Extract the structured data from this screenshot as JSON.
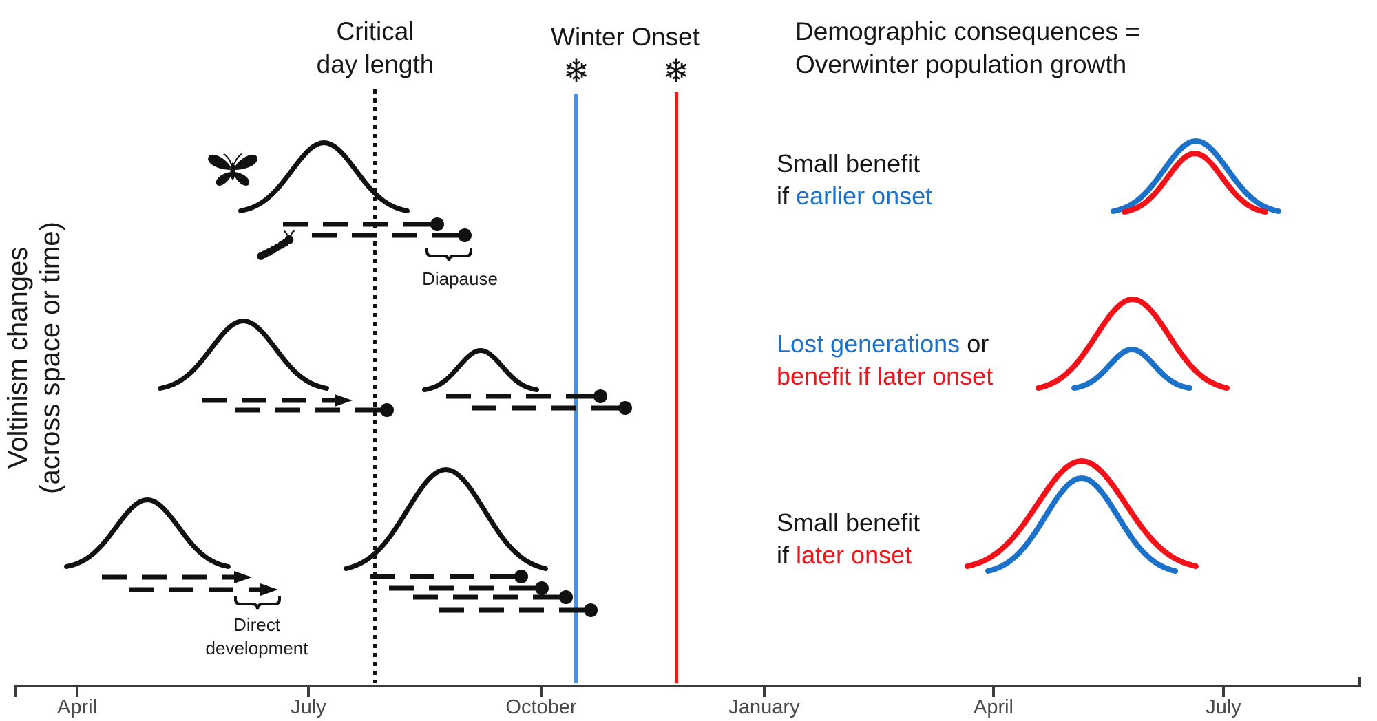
{
  "y_axis_label": {
    "line1": "Voltinism changes",
    "line2": "(across space or time)"
  },
  "top_labels": {
    "critical_day_length": {
      "line1": "Critical",
      "line2": "day length"
    },
    "winter_onset": "Winter Onset",
    "demographic": {
      "line1": "Demographic consequences =",
      "line2": "Overwinter population growth"
    }
  },
  "icons": {
    "snowflake": "❄",
    "butterfly": "butterfly-silhouette",
    "caterpillar": "caterpillar-silhouette"
  },
  "figure_labels": {
    "diapause": "Diapause",
    "direct_development": {
      "line1": "Direct",
      "line2": "development"
    }
  },
  "annotations": {
    "early_onset": {
      "line1": "Small benefit",
      "line2_prefix": "if ",
      "line2_highlight": "earlier onset"
    },
    "lost_generations": {
      "line1_highlight": "Lost generations",
      "line1_suffix": " or",
      "line2_highlight": "benefit if later onset"
    },
    "later_onset": {
      "line1": "Small benefit",
      "line2_prefix": "if ",
      "line2_highlight": "later onset"
    }
  },
  "x_axis": {
    "months": [
      "April",
      "July",
      "October",
      "January",
      "April",
      "July"
    ]
  },
  "colors": {
    "blue": "#1B72C8",
    "red": "#F3121A",
    "blue_line": "#4D90D9",
    "red_line": "#F2181D",
    "ink": "#111111",
    "axis": "#3B3B3B",
    "month_text": "#4A4A4A"
  }
}
